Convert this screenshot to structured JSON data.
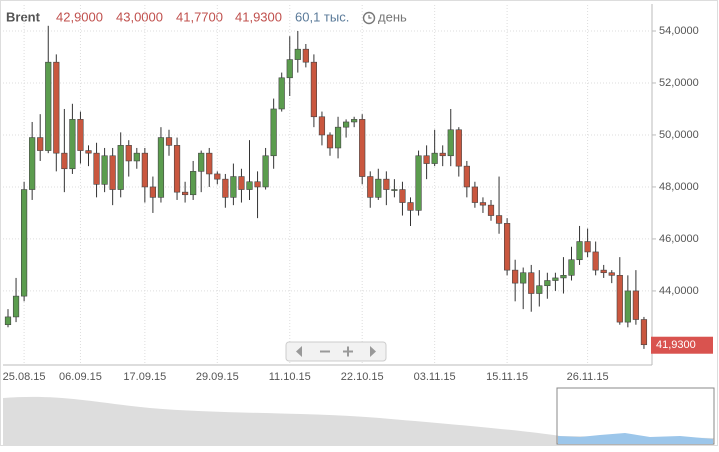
{
  "chart_data": {
    "type": "candlestick",
    "header": {
      "symbol": "Brent",
      "open": "42,9000",
      "high": "43,0000",
      "low": "41,7700",
      "close": "41,9300",
      "volume": "60,1 тыс.",
      "period": "день"
    },
    "last_price_label": "41,9300",
    "categories": [
      null,
      null,
      "25.08.15",
      null,
      null,
      null,
      null,
      null,
      null,
      "06.09.15",
      null,
      null,
      null,
      null,
      null,
      null,
      null,
      "17.09.15",
      null,
      null,
      null,
      null,
      null,
      null,
      null,
      null,
      "29.09.15",
      null,
      null,
      null,
      null,
      null,
      null,
      null,
      null,
      "11.10.15",
      null,
      null,
      null,
      null,
      null,
      null,
      null,
      null,
      "22.10.15",
      null,
      null,
      null,
      null,
      null,
      null,
      null,
      null,
      "03.11.15",
      null,
      null,
      null,
      null,
      null,
      null,
      null,
      null,
      "15.11.15",
      null,
      null,
      null,
      null,
      null,
      null,
      null,
      null,
      null,
      "26.11.15",
      null,
      null,
      null,
      null,
      null,
      null,
      null
    ],
    "open": [
      42.7,
      43.0,
      43.8,
      47.9,
      49.9,
      49.4,
      52.8,
      49.3,
      48.7,
      50.6,
      49.4,
      49.3,
      48.1,
      49.2,
      47.9,
      49.6,
      49.0,
      49.3,
      48.0,
      47.6,
      49.9,
      49.6,
      47.8,
      47.7,
      48.6,
      49.3,
      48.5,
      48.3,
      47.6,
      48.4,
      47.9,
      48.2,
      48.0,
      49.2,
      51.0,
      52.2,
      52.9,
      53.3,
      52.8,
      50.7,
      50.0,
      49.5,
      50.3,
      50.5,
      50.6,
      48.4,
      47.6,
      48.3,
      47.9,
      47.9,
      47.4,
      47.1,
      49.2,
      48.9,
      49.3,
      49.2,
      50.2,
      48.8,
      48.0,
      47.4,
      47.3,
      46.9,
      46.6,
      44.8,
      44.3,
      44.7,
      43.9,
      44.2,
      44.4,
      44.5,
      44.6,
      45.2,
      45.9,
      45.5,
      44.8,
      44.7,
      44.6,
      42.8,
      44.0,
      42.9
    ],
    "high": [
      43.3,
      44.5,
      48.2,
      50.5,
      50.8,
      54.2,
      53.1,
      51.0,
      51.2,
      50.9,
      49.6,
      49.7,
      49.5,
      49.5,
      50.1,
      49.8,
      49.5,
      49.5,
      48.4,
      50.3,
      50.2,
      49.9,
      48.2,
      49.0,
      49.4,
      49.5,
      48.6,
      48.5,
      48.9,
      48.7,
      49.8,
      48.6,
      49.5,
      51.4,
      52.4,
      53.8,
      54.0,
      53.5,
      53.1,
      50.9,
      50.1,
      50.7,
      50.6,
      50.7,
      50.8,
      48.6,
      48.7,
      48.6,
      48.3,
      48.2,
      47.6,
      49.4,
      49.6,
      50.2,
      49.6,
      51.0,
      50.3,
      49.0,
      48.2,
      47.6,
      47.5,
      48.4,
      46.8,
      45.2,
      44.9,
      45.0,
      44.8,
      44.7,
      44.7,
      45.3,
      45.7,
      46.5,
      46.4,
      45.9,
      45.0,
      44.8,
      45.3,
      44.6,
      44.8,
      43.0
    ],
    "low": [
      42.6,
      42.8,
      43.6,
      47.5,
      49.0,
      49.3,
      48.6,
      47.8,
      48.5,
      48.9,
      48.8,
      47.6,
      47.8,
      47.3,
      47.6,
      48.4,
      48.7,
      47.4,
      47.0,
      47.4,
      49.2,
      47.5,
      47.4,
      47.5,
      47.8,
      48.0,
      48.1,
      47.2,
      47.3,
      47.4,
      47.5,
      46.8,
      47.9,
      48.7,
      50.9,
      51.5,
      52.4,
      52.6,
      50.3,
      49.6,
      49.2,
      49.1,
      49.9,
      50.3,
      48.1,
      47.2,
      47.5,
      47.3,
      47.6,
      46.9,
      46.5,
      46.9,
      48.3,
      48.8,
      48.8,
      48.8,
      48.4,
      47.6,
      47.2,
      47.0,
      46.7,
      46.2,
      44.6,
      43.6,
      43.3,
      43.2,
      43.4,
      43.7,
      44.0,
      43.9,
      44.4,
      45.0,
      45.3,
      44.6,
      44.5,
      44.3,
      42.7,
      42.6,
      42.7,
      41.77
    ],
    "close": [
      43.0,
      43.8,
      47.9,
      49.9,
      49.4,
      52.8,
      49.3,
      48.7,
      50.6,
      49.4,
      49.3,
      48.1,
      49.2,
      47.9,
      49.6,
      49.0,
      49.3,
      48.0,
      47.6,
      49.9,
      49.6,
      47.8,
      47.7,
      48.6,
      49.3,
      48.5,
      48.3,
      47.6,
      48.4,
      47.9,
      48.2,
      48.0,
      49.2,
      51.0,
      52.2,
      52.9,
      53.3,
      52.8,
      50.7,
      50.0,
      49.5,
      50.3,
      50.5,
      50.6,
      48.4,
      47.6,
      48.3,
      47.9,
      47.9,
      47.4,
      47.1,
      49.2,
      48.9,
      49.3,
      49.2,
      50.2,
      48.8,
      48.0,
      47.4,
      47.3,
      46.9,
      46.6,
      44.8,
      44.3,
      44.7,
      43.9,
      44.2,
      44.4,
      44.5,
      44.6,
      45.2,
      45.9,
      45.5,
      44.8,
      44.7,
      44.6,
      42.8,
      44.0,
      42.9,
      41.93
    ],
    "up_color": "#5b9c4e",
    "down_color": "#c9573f",
    "ylim": [
      41.15,
      55.0
    ],
    "yticks": [
      {
        "value": 44,
        "label": "44,0000"
      },
      {
        "value": 46,
        "label": "46,0000"
      },
      {
        "value": 48,
        "label": "48,0000"
      },
      {
        "value": 50,
        "label": "50,0000"
      },
      {
        "value": 52,
        "label": "52,0000"
      },
      {
        "value": 54,
        "label": "54,0000"
      }
    ],
    "grid": true
  }
}
